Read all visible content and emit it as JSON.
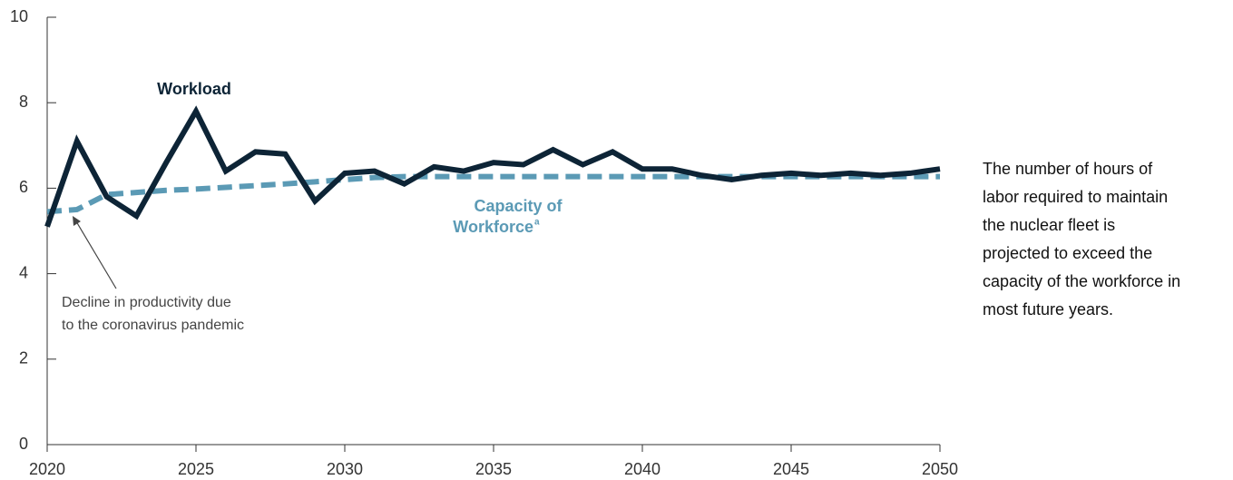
{
  "chart_data": {
    "type": "line",
    "x": [
      2020,
      2021,
      2022,
      2023,
      2024,
      2025,
      2026,
      2027,
      2028,
      2029,
      2030,
      2031,
      2032,
      2033,
      2034,
      2035,
      2036,
      2037,
      2038,
      2039,
      2040,
      2041,
      2042,
      2043,
      2044,
      2045,
      2046,
      2047,
      2048,
      2049,
      2050
    ],
    "series": [
      {
        "name": "Workload",
        "color": "#0d2436",
        "values": [
          5.1,
          7.1,
          5.8,
          5.35,
          6.6,
          7.8,
          6.4,
          6.85,
          6.8,
          5.7,
          6.35,
          6.4,
          6.1,
          6.5,
          6.4,
          6.6,
          6.55,
          6.9,
          6.55,
          6.85,
          6.45,
          6.45,
          6.3,
          6.2,
          6.3,
          6.35,
          6.3,
          6.35,
          6.3,
          6.35,
          6.45
        ]
      },
      {
        "name": "Capacity of Workforce",
        "color": "#5b9ab5",
        "dashed": true,
        "values": [
          5.45,
          5.5,
          5.85,
          5.9,
          5.95,
          5.98,
          6.02,
          6.06,
          6.1,
          6.15,
          6.2,
          6.25,
          6.27,
          6.27,
          6.27,
          6.27,
          6.27,
          6.27,
          6.27,
          6.27,
          6.27,
          6.27,
          6.27,
          6.27,
          6.27,
          6.27,
          6.27,
          6.27,
          6.27,
          6.27,
          6.27
        ]
      }
    ],
    "series_labels": {
      "workload": "Workload",
      "capacity": [
        "Capacity of",
        "Workforce"
      ],
      "capacity_footnote": "a"
    },
    "annotation": [
      "Decline in productivity due",
      "to the coronavirus pandemic"
    ],
    "side_note": [
      "The number of hours of",
      "labor required to maintain",
      "the nuclear fleet is",
      "projected to exceed the",
      "capacity of the workforce in",
      "most future years."
    ],
    "xlim": [
      2020,
      2050
    ],
    "xticks": [
      2020,
      2025,
      2030,
      2035,
      2040,
      2045,
      2050
    ],
    "ylim": [
      0,
      10
    ],
    "yticks": [
      0,
      2,
      4,
      6,
      8,
      10
    ]
  }
}
